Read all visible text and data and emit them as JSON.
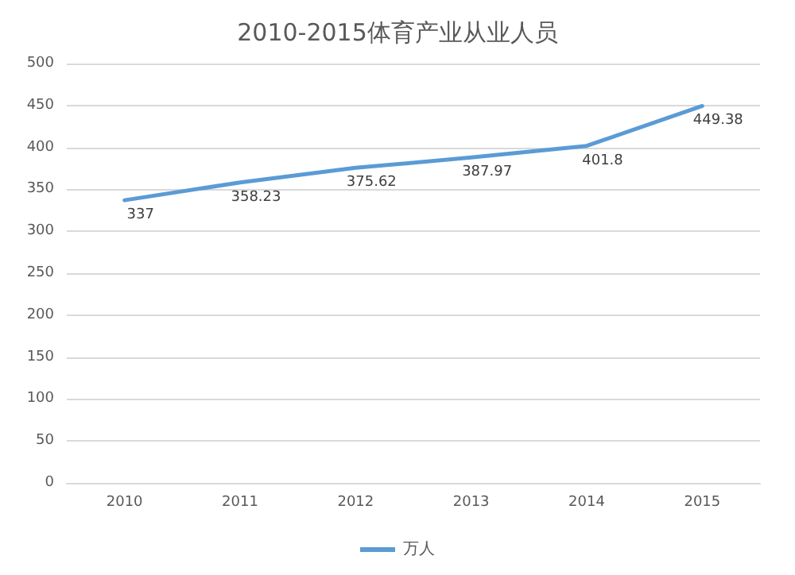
{
  "chart_data": {
    "type": "line",
    "title": "2010-2015体育产业从业人员",
    "categories": [
      "2010",
      "2011",
      "2012",
      "2013",
      "2014",
      "2015"
    ],
    "series": [
      {
        "name": "万人",
        "color": "#5b9bd5",
        "values": [
          337,
          358.23,
          375.62,
          387.97,
          401.8,
          449.38
        ]
      }
    ],
    "ylim": [
      0,
      500
    ],
    "yticks": [
      0,
      50,
      100,
      150,
      200,
      250,
      300,
      350,
      400,
      450,
      500
    ],
    "grid": "y",
    "legend": "bottom",
    "marker": "none",
    "line_style": "solid",
    "data_labels": true
  }
}
